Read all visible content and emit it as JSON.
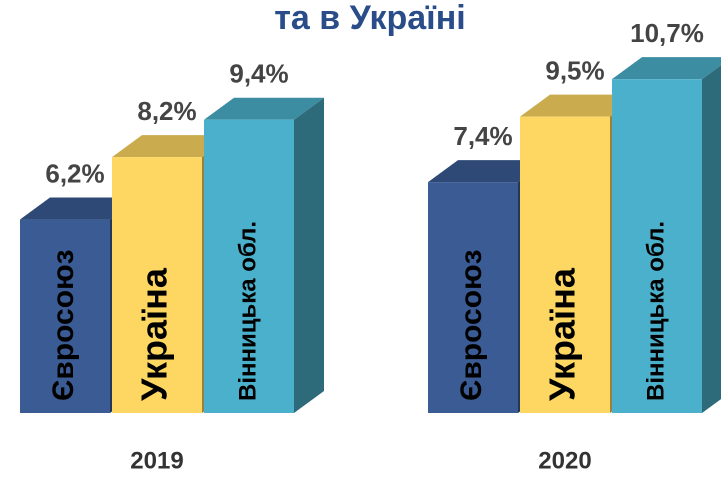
{
  "chart_data": {
    "type": "bar",
    "title": "та в Україні",
    "categories": [
      "2019",
      "2020"
    ],
    "series": [
      {
        "name": "Євросоюз",
        "color": "#3b5b94",
        "values": [
          6.2,
          7.4
        ],
        "value_labels": [
          "6,2%",
          "7,4%"
        ]
      },
      {
        "name": "Україна",
        "color": "#fdd762",
        "values": [
          8.2,
          9.5
        ],
        "value_labels": [
          "8,2%",
          "9,5%"
        ]
      },
      {
        "name": "Вінницька обл.",
        "color": "#4bb0cb",
        "values": [
          9.4,
          10.7
        ],
        "value_labels": [
          "9,4%",
          "10,7%"
        ]
      }
    ]
  }
}
